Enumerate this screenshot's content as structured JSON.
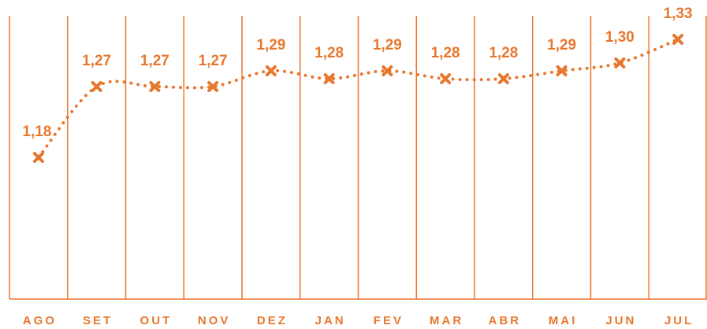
{
  "chart_data": {
    "type": "line",
    "categories": [
      "AGO",
      "SET",
      "OUT",
      "NOV",
      "DEZ",
      "JAN",
      "FEV",
      "MAR",
      "ABR",
      "MAI",
      "JUN",
      "JUL"
    ],
    "values": [
      1.18,
      1.27,
      1.27,
      1.27,
      1.29,
      1.28,
      1.29,
      1.28,
      1.28,
      1.29,
      1.3,
      1.33
    ],
    "value_labels": [
      "1,18",
      "1,27",
      "1,27",
      "1,27",
      "1,29",
      "1,28",
      "1,29",
      "1,28",
      "1,28",
      "1,29",
      "1,30",
      "1,33"
    ],
    "color": "#e8772e",
    "ylim": [
      1.0,
      1.36
    ]
  }
}
